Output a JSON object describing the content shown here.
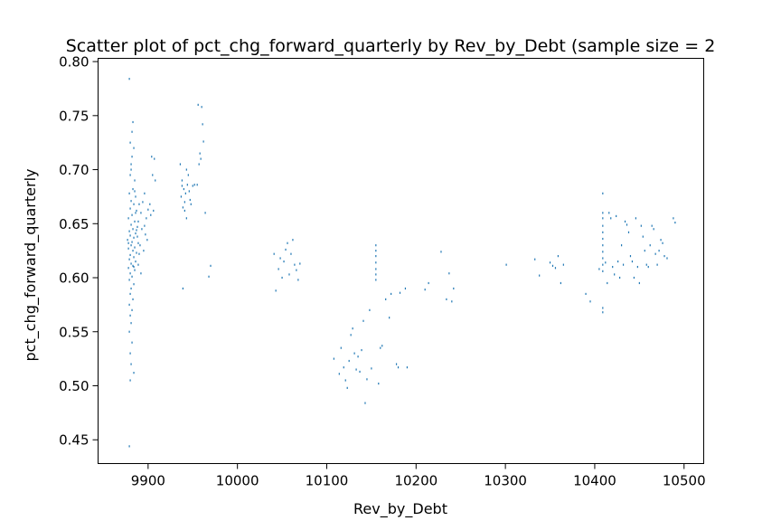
{
  "chart_data": {
    "type": "scatter",
    "title": "Scatter plot of pct_chg_forward_quarterly by Rev_by_Debt (sample size = 2",
    "xlabel": "Rev_by_Debt",
    "ylabel": "pct_chg_forward_quarterly",
    "xlim": [
      9844,
      10522
    ],
    "ylim": [
      0.428,
      0.803
    ],
    "grid": false,
    "point_color": "#1f77b4",
    "x_ticks": [
      {
        "value": 9900,
        "label": "9900"
      },
      {
        "value": 10000,
        "label": "10000"
      },
      {
        "value": 10100,
        "label": "10100"
      },
      {
        "value": 10200,
        "label": "10200"
      },
      {
        "value": 10300,
        "label": "10300"
      },
      {
        "value": 10400,
        "label": "10400"
      },
      {
        "value": 10500,
        "label": "10500"
      }
    ],
    "y_ticks": [
      {
        "value": 0.45,
        "label": "0.45"
      },
      {
        "value": 0.5,
        "label": "0.50"
      },
      {
        "value": 0.55,
        "label": "0.55"
      },
      {
        "value": 0.6,
        "label": "0.60"
      },
      {
        "value": 0.65,
        "label": "0.65"
      },
      {
        "value": 0.7,
        "label": "0.70"
      },
      {
        "value": 0.75,
        "label": "0.75"
      },
      {
        "value": 0.8,
        "label": "0.80"
      }
    ],
    "series": [
      {
        "points": [
          [
            9879,
            0.784
          ],
          [
            9883,
            0.744
          ],
          [
            9882,
            0.735
          ],
          [
            9884,
            0.72
          ],
          [
            9881,
            0.705
          ],
          [
            9880,
            0.695
          ],
          [
            9885,
            0.69
          ],
          [
            9883,
            0.682
          ],
          [
            9879,
            0.678
          ],
          [
            9886,
            0.675
          ],
          [
            9881,
            0.671
          ],
          [
            9884,
            0.668
          ],
          [
            9880,
            0.664
          ],
          [
            9887,
            0.662
          ],
          [
            9882,
            0.658
          ],
          [
            9878,
            0.655
          ],
          [
            9885,
            0.652
          ],
          [
            9881,
            0.649
          ],
          [
            9888,
            0.647
          ],
          [
            9883,
            0.645
          ],
          [
            9879,
            0.643
          ],
          [
            9886,
            0.641
          ],
          [
            9880,
            0.639
          ],
          [
            9884,
            0.637
          ],
          [
            9877,
            0.635
          ],
          [
            9882,
            0.633
          ],
          [
            9889,
            0.632
          ],
          [
            9881,
            0.63
          ],
          [
            9885,
            0.628
          ],
          [
            9878,
            0.627
          ],
          [
            9883,
            0.625
          ],
          [
            9887,
            0.623
          ],
          [
            9880,
            0.621
          ],
          [
            9884,
            0.619
          ],
          [
            9879,
            0.617
          ],
          [
            9886,
            0.615
          ],
          [
            9881,
            0.613
          ],
          [
            9883,
            0.611
          ],
          [
            9878,
            0.609
          ],
          [
            9885,
            0.607
          ],
          [
            9880,
            0.604
          ],
          [
            9882,
            0.601
          ],
          [
            9879,
            0.598
          ],
          [
            9884,
            0.594
          ],
          [
            9881,
            0.59
          ],
          [
            9880,
            0.585
          ],
          [
            9883,
            0.58
          ],
          [
            9879,
            0.575
          ],
          [
            9882,
            0.57
          ],
          [
            9880,
            0.565
          ],
          [
            9881,
            0.558
          ],
          [
            9879,
            0.55
          ],
          [
            9882,
            0.54
          ],
          [
            9880,
            0.53
          ],
          [
            9881,
            0.52
          ],
          [
            9884,
            0.512
          ],
          [
            9880,
            0.505
          ],
          [
            9879,
            0.444
          ],
          [
            9890,
            0.668
          ],
          [
            9892,
            0.66
          ],
          [
            9889,
            0.652
          ],
          [
            9893,
            0.645
          ],
          [
            9888,
            0.638
          ],
          [
            9891,
            0.63
          ],
          [
            9890,
            0.622
          ],
          [
            9889,
            0.612
          ],
          [
            9892,
            0.604
          ],
          [
            9895,
            0.625
          ],
          [
            9897,
            0.64
          ],
          [
            9898,
            0.655
          ],
          [
            9900,
            0.663
          ],
          [
            9902,
            0.668
          ],
          [
            9896,
            0.648
          ],
          [
            9899,
            0.635
          ],
          [
            9903,
            0.658
          ],
          [
            9904,
            0.712
          ],
          [
            9907,
            0.71
          ],
          [
            9905,
            0.695
          ],
          [
            9908,
            0.69
          ],
          [
            9906,
            0.662
          ],
          [
            9894,
            0.67
          ],
          [
            9896,
            0.678
          ],
          [
            9881,
            0.7
          ],
          [
            9882,
            0.712
          ],
          [
            9880,
            0.725
          ],
          [
            9885,
            0.68
          ],
          [
            9886,
            0.66
          ],
          [
            9887,
            0.644
          ],
          [
            9878,
            0.632
          ],
          [
            9884,
            0.61
          ],
          [
            9936,
            0.705
          ],
          [
            9938,
            0.69
          ],
          [
            9940,
            0.682
          ],
          [
            9942,
            0.678
          ],
          [
            9937,
            0.675
          ],
          [
            9941,
            0.67
          ],
          [
            9939,
            0.665
          ],
          [
            9943,
            0.7
          ],
          [
            9945,
            0.695
          ],
          [
            9944,
            0.686
          ],
          [
            9946,
            0.68
          ],
          [
            9947,
            0.672
          ],
          [
            9948,
            0.668
          ],
          [
            9950,
            0.685
          ],
          [
            9952,
            0.686
          ],
          [
            9955,
            0.686
          ],
          [
            9957,
            0.705
          ],
          [
            9958,
            0.715
          ],
          [
            9959,
            0.71
          ],
          [
            9956,
            0.76
          ],
          [
            9960,
            0.758
          ],
          [
            9961,
            0.742
          ],
          [
            9962,
            0.726
          ],
          [
            9964,
            0.66
          ],
          [
            9968,
            0.601
          ],
          [
            9970,
            0.611
          ],
          [
            9939,
            0.59
          ],
          [
            9943,
            0.655
          ],
          [
            9941,
            0.662
          ],
          [
            9938,
            0.685
          ],
          [
            10041,
            0.622
          ],
          [
            10043,
            0.588
          ],
          [
            10046,
            0.608
          ],
          [
            10048,
            0.618
          ],
          [
            10050,
            0.6
          ],
          [
            10052,
            0.615
          ],
          [
            10054,
            0.626
          ],
          [
            10056,
            0.632
          ],
          [
            10058,
            0.603
          ],
          [
            10060,
            0.622
          ],
          [
            10062,
            0.635
          ],
          [
            10064,
            0.612
          ],
          [
            10066,
            0.607
          ],
          [
            10068,
            0.598
          ],
          [
            10070,
            0.613
          ],
          [
            10108,
            0.525
          ],
          [
            10114,
            0.511
          ],
          [
            10116,
            0.535
          ],
          [
            10119,
            0.517
          ],
          [
            10121,
            0.505
          ],
          [
            10123,
            0.498
          ],
          [
            10125,
            0.523
          ],
          [
            10127,
            0.547
          ],
          [
            10129,
            0.553
          ],
          [
            10131,
            0.53
          ],
          [
            10133,
            0.515
          ],
          [
            10135,
            0.527
          ],
          [
            10137,
            0.513
          ],
          [
            10139,
            0.533
          ],
          [
            10141,
            0.56
          ],
          [
            10143,
            0.484
          ],
          [
            10145,
            0.506
          ],
          [
            10148,
            0.57
          ],
          [
            10150,
            0.516
          ],
          [
            10155,
            0.63
          ],
          [
            10155,
            0.625
          ],
          [
            10155,
            0.62
          ],
          [
            10155,
            0.614
          ],
          [
            10155,
            0.608
          ],
          [
            10155,
            0.603
          ],
          [
            10155,
            0.598
          ],
          [
            10158,
            0.502
          ],
          [
            10160,
            0.535
          ],
          [
            10162,
            0.537
          ],
          [
            10166,
            0.58
          ],
          [
            10170,
            0.563
          ],
          [
            10172,
            0.585
          ],
          [
            10178,
            0.52
          ],
          [
            10180,
            0.517
          ],
          [
            10182,
            0.586
          ],
          [
            10188,
            0.59
          ],
          [
            10190,
            0.517
          ],
          [
            10210,
            0.589
          ],
          [
            10214,
            0.595
          ],
          [
            10228,
            0.624
          ],
          [
            10234,
            0.58
          ],
          [
            10237,
            0.604
          ],
          [
            10240,
            0.578
          ],
          [
            10242,
            0.59
          ],
          [
            10301,
            0.612
          ],
          [
            10333,
            0.617
          ],
          [
            10338,
            0.602
          ],
          [
            10350,
            0.614
          ],
          [
            10353,
            0.611
          ],
          [
            10356,
            0.609
          ],
          [
            10359,
            0.62
          ],
          [
            10362,
            0.595
          ],
          [
            10365,
            0.612
          ],
          [
            10390,
            0.585
          ],
          [
            10395,
            0.578
          ],
          [
            10405,
            0.608
          ],
          [
            10409,
            0.678
          ],
          [
            10409,
            0.66
          ],
          [
            10409,
            0.655
          ],
          [
            10409,
            0.648
          ],
          [
            10409,
            0.642
          ],
          [
            10409,
            0.636
          ],
          [
            10409,
            0.63
          ],
          [
            10409,
            0.624
          ],
          [
            10409,
            0.618
          ],
          [
            10409,
            0.612
          ],
          [
            10409,
            0.606
          ],
          [
            10409,
            0.572
          ],
          [
            10409,
            0.568
          ],
          [
            10412,
            0.614
          ],
          [
            10414,
            0.595
          ],
          [
            10416,
            0.66
          ],
          [
            10418,
            0.655
          ],
          [
            10420,
            0.61
          ],
          [
            10422,
            0.603
          ],
          [
            10424,
            0.657
          ],
          [
            10426,
            0.615
          ],
          [
            10428,
            0.6
          ],
          [
            10430,
            0.63
          ],
          [
            10432,
            0.612
          ],
          [
            10434,
            0.652
          ],
          [
            10436,
            0.649
          ],
          [
            10438,
            0.642
          ],
          [
            10440,
            0.62
          ],
          [
            10442,
            0.615
          ],
          [
            10444,
            0.6
          ],
          [
            10446,
            0.655
          ],
          [
            10448,
            0.61
          ],
          [
            10450,
            0.595
          ],
          [
            10452,
            0.648
          ],
          [
            10454,
            0.638
          ],
          [
            10456,
            0.625
          ],
          [
            10458,
            0.612
          ],
          [
            10460,
            0.61
          ],
          [
            10462,
            0.63
          ],
          [
            10464,
            0.648
          ],
          [
            10466,
            0.645
          ],
          [
            10468,
            0.622
          ],
          [
            10470,
            0.612
          ],
          [
            10472,
            0.625
          ],
          [
            10474,
            0.635
          ],
          [
            10476,
            0.632
          ],
          [
            10478,
            0.62
          ],
          [
            10481,
            0.618
          ],
          [
            10488,
            0.655
          ],
          [
            10490,
            0.651
          ]
        ]
      }
    ]
  }
}
